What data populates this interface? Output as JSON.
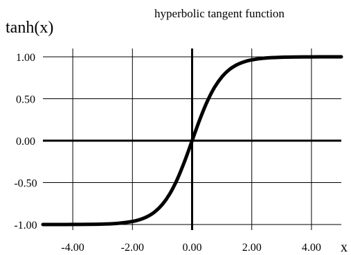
{
  "chart_data": {
    "type": "line",
    "title": "hyperbolic tangent function",
    "xlabel": "x",
    "ylabel": "tanh(x)",
    "xlim": [
      -5.0,
      5.0
    ],
    "ylim": [
      -1.0,
      1.0
    ],
    "grid": true,
    "x_ticks": [
      -4.0,
      -2.0,
      0.0,
      2.0,
      4.0
    ],
    "x_tick_labels": [
      "-4.00",
      "-2.00",
      "0.00",
      "2.00",
      "4.00"
    ],
    "y_ticks": [
      1.0,
      0.5,
      0.0,
      -0.5,
      -1.0
    ],
    "y_tick_labels": [
      "1.00",
      "0.50",
      "0.00",
      "-0.50",
      "-1.00"
    ],
    "series": [
      {
        "x": [
          -5.0,
          -4.5,
          -4.0,
          -3.5,
          -3.0,
          -2.5,
          -2.0,
          -1.75,
          -1.5,
          -1.25,
          -1.0,
          -0.75,
          -0.5,
          -0.25,
          0.0,
          0.25,
          0.5,
          0.75,
          1.0,
          1.25,
          1.5,
          1.75,
          2.0,
          2.5,
          3.0,
          3.5,
          4.0,
          4.5,
          5.0
        ],
        "y": [
          -0.9999,
          -0.9998,
          -0.9993,
          -0.9982,
          -0.9951,
          -0.9866,
          -0.964,
          -0.9414,
          -0.9051,
          -0.8483,
          -0.7616,
          -0.6351,
          -0.4621,
          -0.2449,
          0.0,
          0.2449,
          0.4621,
          0.6351,
          0.7616,
          0.8483,
          0.9051,
          0.9414,
          0.964,
          0.9866,
          0.9951,
          0.9982,
          0.9993,
          0.9998,
          0.9999
        ],
        "color": "#000000"
      }
    ]
  }
}
